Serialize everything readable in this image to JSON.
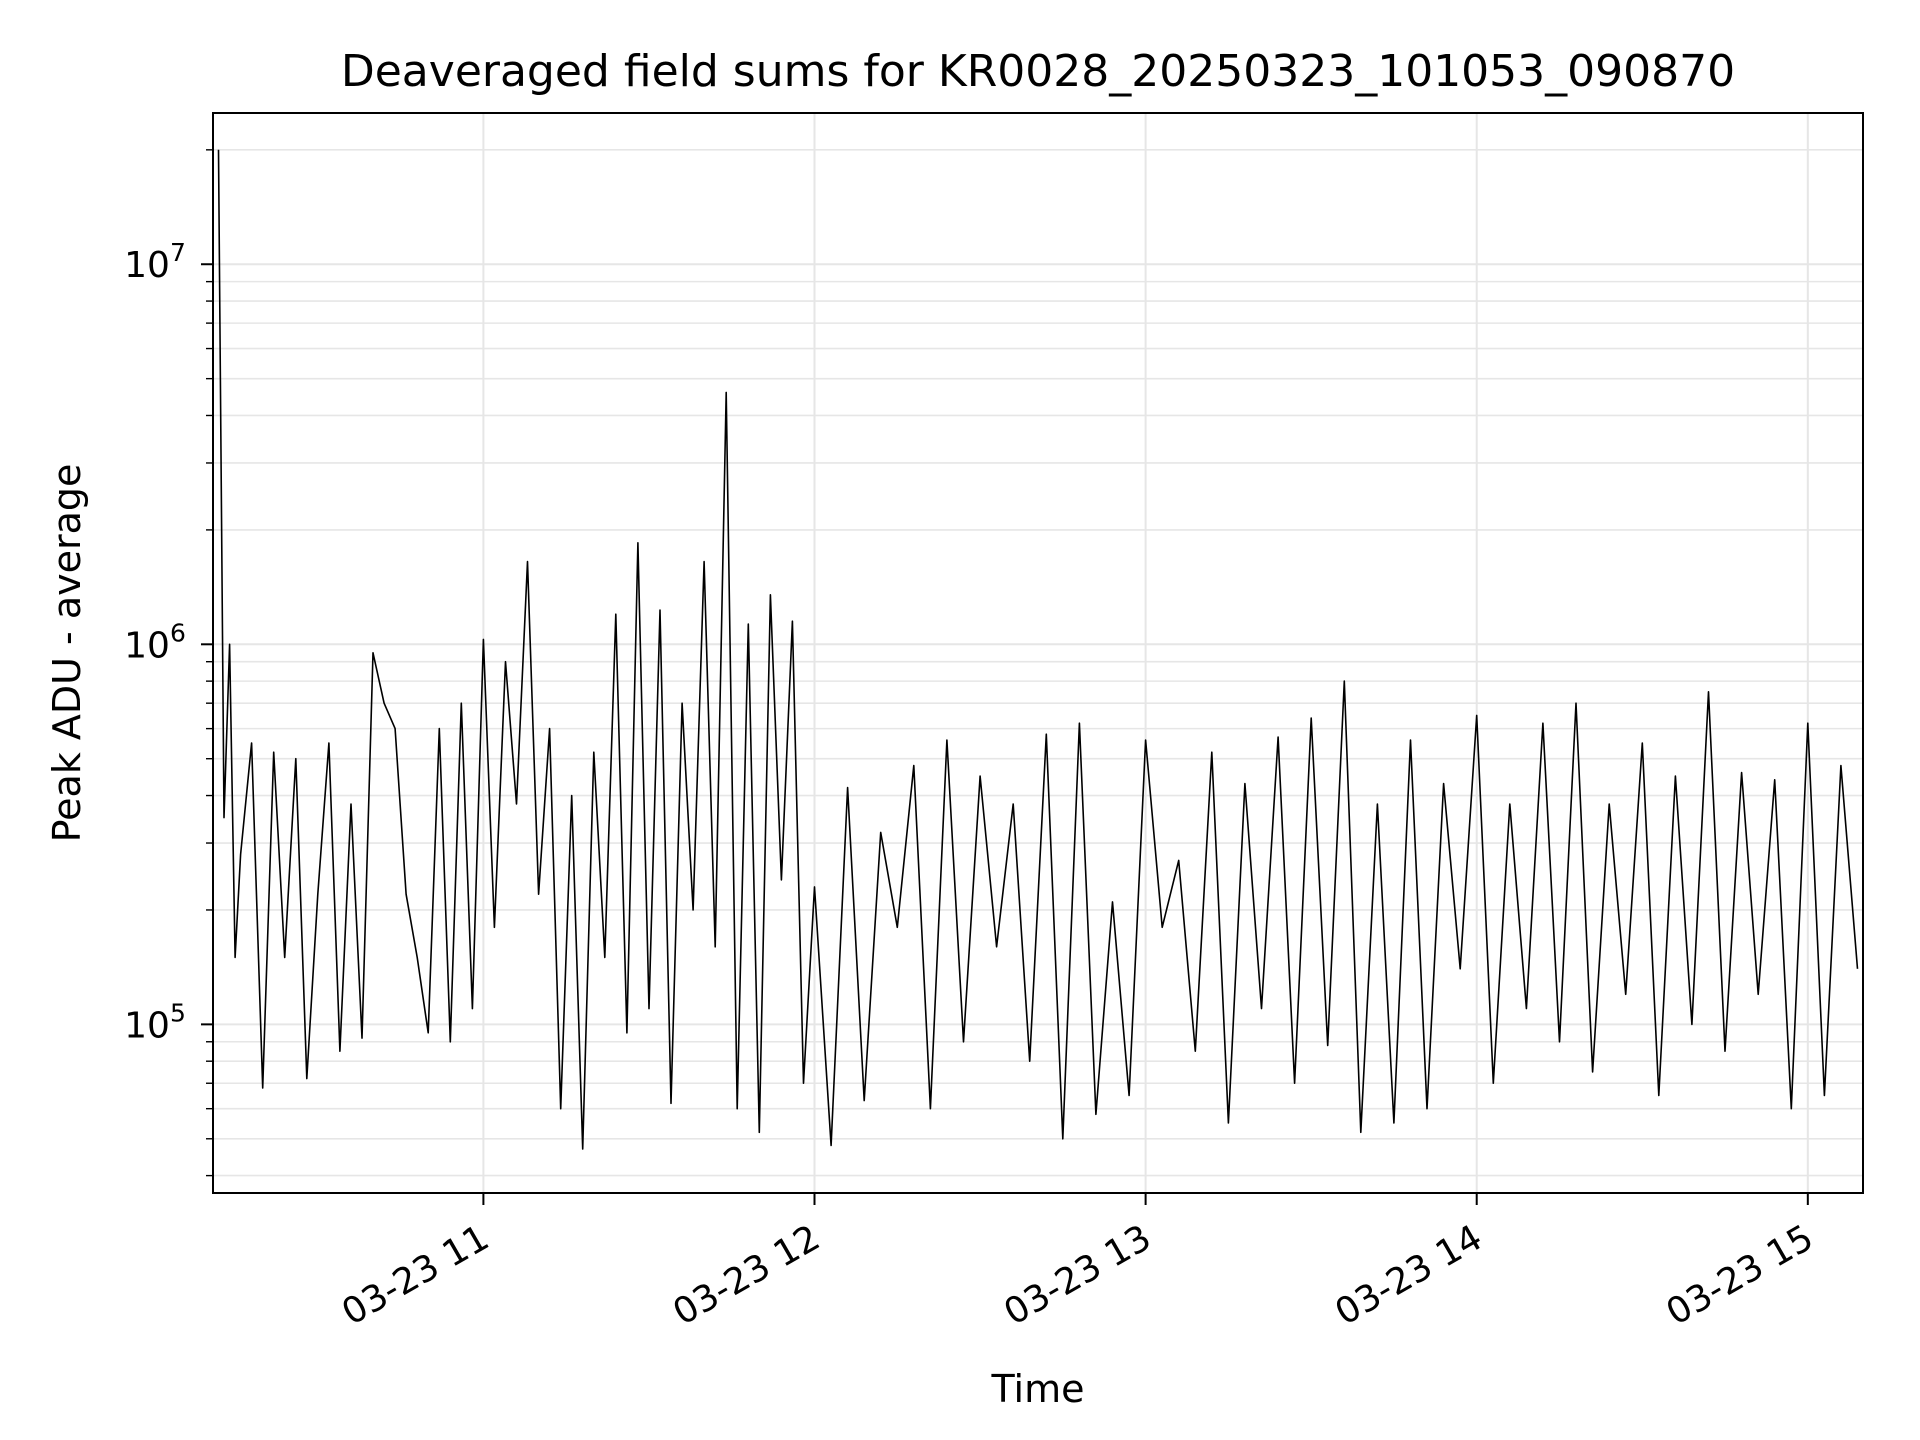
{
  "chart_data": {
    "type": "line",
    "title": "Deaveraged field sums for KR0028_20250323_101053_090870",
    "xlabel": "Time",
    "ylabel": "Peak ADU - average",
    "x_type": "datetime",
    "y_scale": "log",
    "xlim": [
      "2025-03-23 10:11",
      "2025-03-23 15:10"
    ],
    "ylim": [
      36000,
      25000000
    ],
    "grid": true,
    "line_color": "#000000",
    "x_ticks": [
      {
        "value": "2025-03-23 11:00",
        "label": "03-23 11"
      },
      {
        "value": "2025-03-23 12:00",
        "label": "03-23 12"
      },
      {
        "value": "2025-03-23 13:00",
        "label": "03-23 13"
      },
      {
        "value": "2025-03-23 14:00",
        "label": "03-23 14"
      },
      {
        "value": "2025-03-23 15:00",
        "label": "03-23 15"
      }
    ],
    "y_ticks": [
      {
        "value": 100000,
        "base": "10",
        "exp": "5"
      },
      {
        "value": 1000000,
        "base": "10",
        "exp": "6"
      },
      {
        "value": 10000000,
        "base": "10",
        "exp": "7"
      }
    ],
    "series": [
      {
        "x": [
          "2025-03-23 10:12",
          "2025-03-23 10:13",
          "2025-03-23 10:14",
          "2025-03-23 10:15",
          "2025-03-23 10:16",
          "2025-03-23 10:18",
          "2025-03-23 10:20",
          "2025-03-23 10:22",
          "2025-03-23 10:24",
          "2025-03-23 10:26",
          "2025-03-23 10:28",
          "2025-03-23 10:30",
          "2025-03-23 10:32",
          "2025-03-23 10:34",
          "2025-03-23 10:36",
          "2025-03-23 10:38",
          "2025-03-23 10:40",
          "2025-03-23 10:42",
          "2025-03-23 10:44",
          "2025-03-23 10:46",
          "2025-03-23 10:48",
          "2025-03-23 10:50",
          "2025-03-23 10:52",
          "2025-03-23 10:54",
          "2025-03-23 10:56",
          "2025-03-23 10:58",
          "2025-03-23 11:00",
          "2025-03-23 11:02",
          "2025-03-23 11:04",
          "2025-03-23 11:06",
          "2025-03-23 11:08",
          "2025-03-23 11:10",
          "2025-03-23 11:12",
          "2025-03-23 11:14",
          "2025-03-23 11:16",
          "2025-03-23 11:18",
          "2025-03-23 11:20",
          "2025-03-23 11:22",
          "2025-03-23 11:24",
          "2025-03-23 11:26",
          "2025-03-23 11:28",
          "2025-03-23 11:30",
          "2025-03-23 11:32",
          "2025-03-23 11:34",
          "2025-03-23 11:36",
          "2025-03-23 11:38",
          "2025-03-23 11:40",
          "2025-03-23 11:42",
          "2025-03-23 11:44",
          "2025-03-23 11:46",
          "2025-03-23 11:48",
          "2025-03-23 11:50",
          "2025-03-23 11:52",
          "2025-03-23 11:54",
          "2025-03-23 11:56",
          "2025-03-23 11:58",
          "2025-03-23 12:00",
          "2025-03-23 12:03",
          "2025-03-23 12:06",
          "2025-03-23 12:09",
          "2025-03-23 12:12",
          "2025-03-23 12:15",
          "2025-03-23 12:18",
          "2025-03-23 12:21",
          "2025-03-23 12:24",
          "2025-03-23 12:27",
          "2025-03-23 12:30",
          "2025-03-23 12:33",
          "2025-03-23 12:36",
          "2025-03-23 12:39",
          "2025-03-23 12:42",
          "2025-03-23 12:45",
          "2025-03-23 12:48",
          "2025-03-23 12:51",
          "2025-03-23 12:54",
          "2025-03-23 12:57",
          "2025-03-23 13:00",
          "2025-03-23 13:03",
          "2025-03-23 13:06",
          "2025-03-23 13:09",
          "2025-03-23 13:12",
          "2025-03-23 13:15",
          "2025-03-23 13:18",
          "2025-03-23 13:21",
          "2025-03-23 13:24",
          "2025-03-23 13:27",
          "2025-03-23 13:30",
          "2025-03-23 13:33",
          "2025-03-23 13:36",
          "2025-03-23 13:39",
          "2025-03-23 13:42",
          "2025-03-23 13:45",
          "2025-03-23 13:48",
          "2025-03-23 13:51",
          "2025-03-23 13:54",
          "2025-03-23 13:57",
          "2025-03-23 14:00",
          "2025-03-23 14:03",
          "2025-03-23 14:06",
          "2025-03-23 14:09",
          "2025-03-23 14:12",
          "2025-03-23 14:15",
          "2025-03-23 14:18",
          "2025-03-23 14:21",
          "2025-03-23 14:24",
          "2025-03-23 14:27",
          "2025-03-23 14:30",
          "2025-03-23 14:33",
          "2025-03-23 14:36",
          "2025-03-23 14:39",
          "2025-03-23 14:42",
          "2025-03-23 14:45",
          "2025-03-23 14:48",
          "2025-03-23 14:51",
          "2025-03-23 14:54",
          "2025-03-23 14:57",
          "2025-03-23 15:00",
          "2025-03-23 15:03",
          "2025-03-23 15:06",
          "2025-03-23 15:09"
        ],
        "y": [
          20000000,
          350000,
          1000000,
          150000,
          280000,
          550000,
          68000,
          520000,
          150000,
          500000,
          72000,
          220000,
          550000,
          85000,
          380000,
          92000,
          950000,
          700000,
          600000,
          220000,
          150000,
          95000,
          600000,
          90000,
          700000,
          110000,
          1030000,
          180000,
          900000,
          380000,
          1650000,
          220000,
          600000,
          60000,
          400000,
          47000,
          520000,
          150000,
          1200000,
          95000,
          1850000,
          110000,
          1230000,
          62000,
          700000,
          200000,
          1650000,
          160000,
          4600000,
          60000,
          1130000,
          52000,
          1350000,
          240000,
          1150000,
          70000,
          230000,
          48000,
          420000,
          63000,
          320000,
          180000,
          480000,
          60000,
          560000,
          90000,
          450000,
          160000,
          380000,
          80000,
          580000,
          50000,
          620000,
          58000,
          210000,
          65000,
          560000,
          180000,
          270000,
          85000,
          520000,
          55000,
          430000,
          110000,
          570000,
          70000,
          640000,
          88000,
          800000,
          52000,
          380000,
          55000,
          560000,
          60000,
          430000,
          140000,
          650000,
          70000,
          380000,
          110000,
          620000,
          90000,
          700000,
          75000,
          380000,
          120000,
          550000,
          65000,
          450000,
          100000,
          750000,
          85000,
          460000,
          120000,
          440000,
          60000,
          620000,
          65000,
          480000,
          140000
        ]
      }
    ]
  }
}
